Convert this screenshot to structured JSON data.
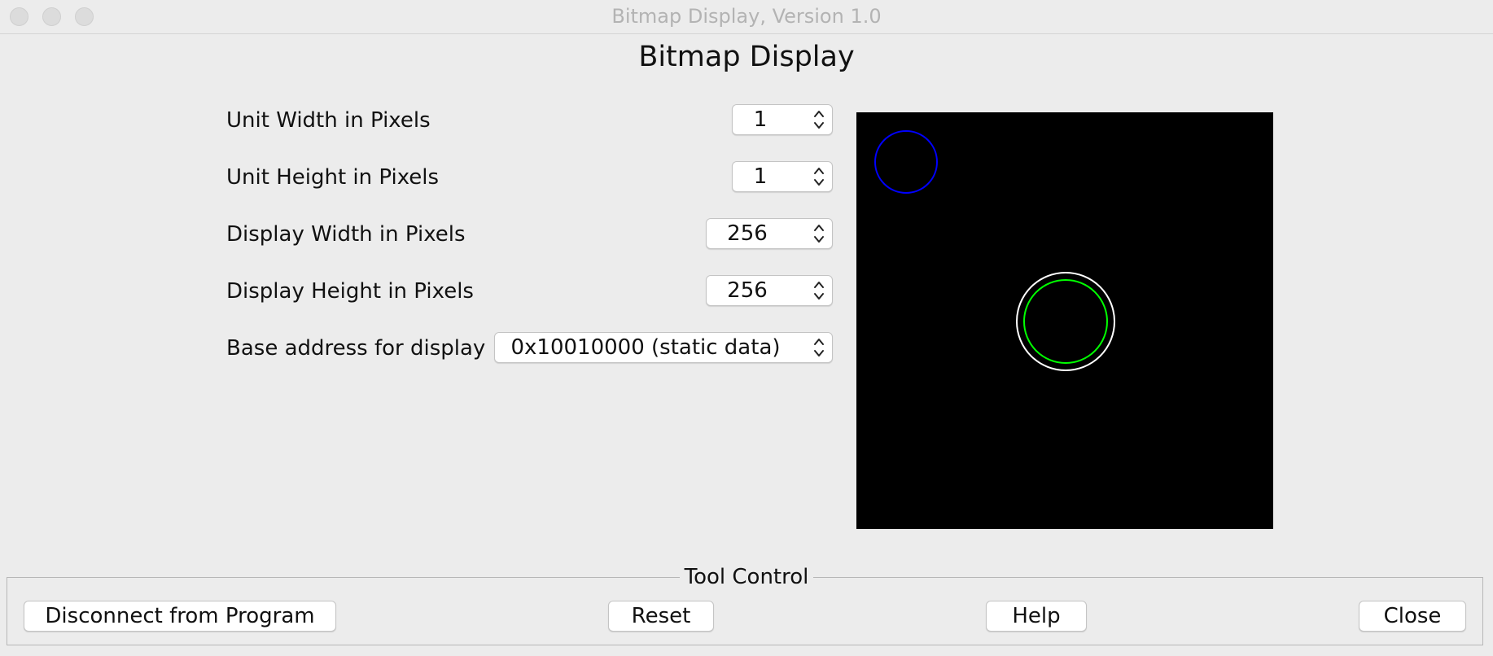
{
  "window": {
    "title": "Bitmap Display, Version 1.0"
  },
  "page": {
    "title": "Bitmap Display"
  },
  "settings": [
    {
      "label": "Unit Width in Pixels",
      "value": "1"
    },
    {
      "label": "Unit Height in Pixels",
      "value": "1"
    },
    {
      "label": "Display Width in Pixels",
      "value": "256"
    },
    {
      "label": "Display Height in Pixels",
      "value": "256"
    },
    {
      "label": "Base address for display",
      "value": "0x10010000 (static data)"
    }
  ],
  "display": {
    "background_color": "#000000",
    "shapes": [
      {
        "name": "blue-circle",
        "color": "#0000ff"
      },
      {
        "name": "white-circle",
        "color": "#ffffff"
      },
      {
        "name": "green-circle",
        "color": "#00ff00"
      }
    ]
  },
  "tool_control": {
    "legend": "Tool Control",
    "disconnect_label": "Disconnect from Program",
    "reset_label": "Reset",
    "help_label": "Help",
    "close_label": "Close"
  }
}
